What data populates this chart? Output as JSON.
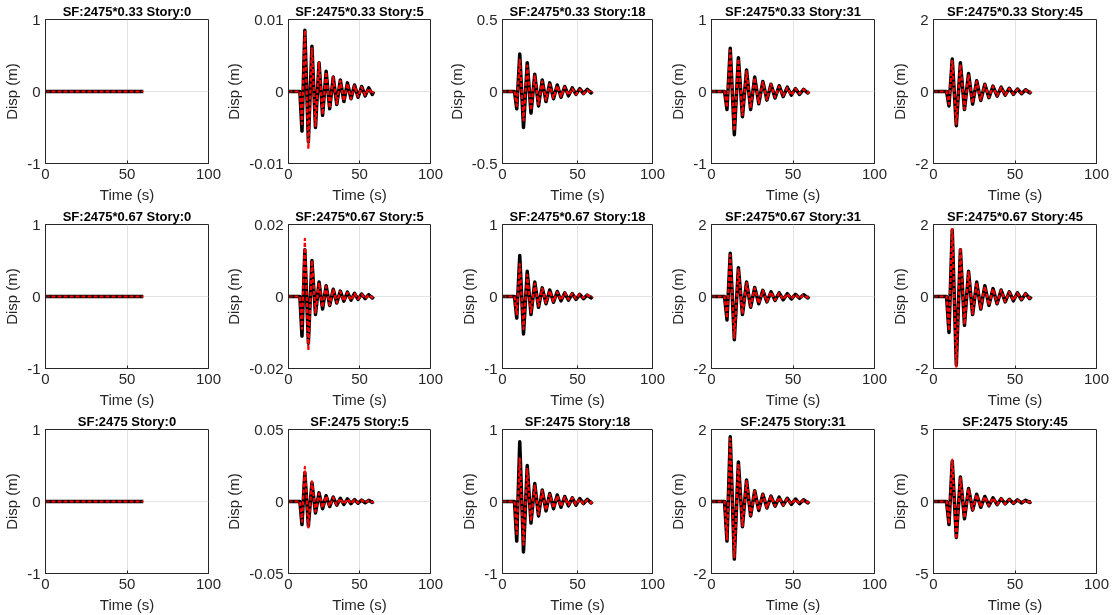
{
  "chart_data": [
    {
      "type": "line",
      "title": "SF:2475*0.33 Story:0",
      "xlabel": "Time (s)",
      "ylabel": "Disp (m)",
      "xlim": [
        0,
        100
      ],
      "xticks": [
        0,
        50,
        100
      ],
      "ylim": [
        -1,
        1
      ],
      "yticks": [
        -1,
        0,
        1
      ],
      "grid": true,
      "x": [
        0,
        8,
        9.5,
        11.5,
        14,
        16.5,
        19,
        21.5,
        24,
        26.5,
        29,
        31.5,
        34,
        36.5,
        39,
        41.5,
        44,
        46.5,
        49,
        51.5,
        54,
        56.5,
        59,
        60
      ],
      "series": [
        {
          "color": "#000000",
          "line_style": "solid",
          "values": [
            0,
            0,
            0,
            0,
            0,
            0,
            0,
            0,
            0,
            0,
            0,
            0,
            0,
            0,
            0,
            0,
            0,
            0,
            0,
            0,
            0,
            0,
            0,
            0
          ]
        },
        {
          "color": "#ff0000",
          "line_style": "dashed",
          "values": [
            0,
            0,
            0,
            0,
            0,
            0,
            0,
            0,
            0,
            0,
            0,
            0,
            0,
            0,
            0,
            0,
            0,
            0,
            0,
            0,
            0,
            0,
            0,
            0
          ]
        }
      ]
    },
    {
      "type": "line",
      "title": "SF:2475*0.33 Story:5",
      "xlabel": "Time (s)",
      "ylabel": "Disp (m)",
      "xlim": [
        0,
        100
      ],
      "xticks": [
        0,
        50,
        100
      ],
      "ylim": [
        -0.01,
        0.01
      ],
      "yticks": [
        -0.01,
        0,
        0.01
      ],
      "grid": true,
      "x": [
        0,
        8,
        9.5,
        11.5,
        14,
        16.5,
        19,
        21.5,
        24,
        26.5,
        29,
        31.5,
        34,
        36.5,
        39,
        41.5,
        44,
        46.5,
        49,
        51.5,
        54,
        56.5,
        59,
        60
      ],
      "series": [
        {
          "color": "#000000",
          "line_style": "solid",
          "values": [
            0,
            0,
            -0.0055,
            0.0085,
            -0.007,
            0.0063,
            -0.005,
            0.004,
            -0.0033,
            0.0028,
            -0.0024,
            0.002,
            -0.0018,
            0.0016,
            -0.0014,
            0.0012,
            -0.001,
            0.0009,
            -0.0008,
            0.0007,
            -0.0006,
            0.0005,
            -0.0004,
            0
          ]
        },
        {
          "color": "#ff0000",
          "line_style": "dashed",
          "values": [
            0,
            0,
            -0.0045,
            0.0085,
            -0.008,
            0.006,
            -0.0048,
            0.004,
            -0.0032,
            0.0027,
            -0.0023,
            0.002,
            -0.0017,
            0.0015,
            -0.0013,
            0.0011,
            -0.001,
            0.0008,
            -0.0007,
            0.0006,
            -0.0005,
            0.0004,
            -0.0003,
            0
          ]
        }
      ]
    },
    {
      "type": "line",
      "title": "SF:2475*0.33 Story:18",
      "xlabel": "Time (s)",
      "ylabel": "Disp (m)",
      "xlim": [
        0,
        100
      ],
      "xticks": [
        0,
        50,
        100
      ],
      "ylim": [
        -0.5,
        0.5
      ],
      "yticks": [
        -0.5,
        0,
        0.5
      ],
      "grid": true,
      "x": [
        0,
        8,
        9.5,
        11.5,
        14,
        16.5,
        19,
        21.5,
        24,
        26.5,
        29,
        31.5,
        34,
        36.5,
        39,
        41.5,
        44,
        46.5,
        49,
        51.5,
        54,
        56.5,
        59,
        60
      ],
      "series": [
        {
          "color": "#000000",
          "line_style": "solid",
          "values": [
            0,
            0,
            -0.12,
            0.26,
            -0.25,
            0.2,
            -0.15,
            0.12,
            -0.1,
            0.08,
            -0.07,
            0.06,
            -0.05,
            0.045,
            -0.04,
            0.035,
            -0.03,
            0.025,
            -0.02,
            0.02,
            -0.015,
            0.015,
            -0.01,
            0
          ]
        },
        {
          "color": "#ff0000",
          "line_style": "dashed",
          "values": [
            0,
            0,
            -0.1,
            0.22,
            -0.2,
            0.18,
            -0.13,
            0.11,
            -0.09,
            0.07,
            -0.06,
            0.05,
            -0.045,
            0.04,
            -0.035,
            0.03,
            -0.025,
            0.02,
            -0.02,
            0.015,
            -0.015,
            0.01,
            -0.01,
            0
          ]
        }
      ]
    },
    {
      "type": "line",
      "title": "SF:2475*0.33 Story:31",
      "xlabel": "Time (s)",
      "ylabel": "Disp (m)",
      "xlim": [
        0,
        100
      ],
      "xticks": [
        0,
        50,
        100
      ],
      "ylim": [
        -1,
        1
      ],
      "yticks": [
        -1,
        0,
        1
      ],
      "grid": true,
      "x": [
        0,
        8,
        9.5,
        11.5,
        14,
        16.5,
        19,
        21.5,
        24,
        26.5,
        29,
        31.5,
        34,
        36.5,
        39,
        41.5,
        44,
        46.5,
        49,
        51.5,
        54,
        56.5,
        59,
        60
      ],
      "series": [
        {
          "color": "#000000",
          "line_style": "solid",
          "values": [
            0,
            0,
            -0.25,
            0.6,
            -0.6,
            0.47,
            -0.35,
            0.3,
            -0.25,
            0.2,
            -0.17,
            0.14,
            -0.12,
            0.1,
            -0.09,
            0.08,
            -0.07,
            0.06,
            -0.05,
            0.04,
            -0.04,
            0.03,
            -0.02,
            0
          ]
        },
        {
          "color": "#ff0000",
          "line_style": "dashed",
          "values": [
            0,
            0,
            -0.22,
            0.57,
            -0.55,
            0.45,
            -0.33,
            0.28,
            -0.23,
            0.19,
            -0.16,
            0.13,
            -0.11,
            0.1,
            -0.08,
            0.07,
            -0.06,
            0.05,
            -0.05,
            0.04,
            -0.03,
            0.03,
            -0.02,
            0
          ]
        }
      ]
    },
    {
      "type": "line",
      "title": "SF:2475*0.33 Story:45",
      "xlabel": "Time (s)",
      "ylabel": "Disp (m)",
      "xlim": [
        0,
        100
      ],
      "xticks": [
        0,
        50,
        100
      ],
      "ylim": [
        -2,
        2
      ],
      "yticks": [
        -2,
        0,
        2
      ],
      "grid": true,
      "x": [
        0,
        8,
        9.5,
        11.5,
        14,
        16.5,
        19,
        21.5,
        24,
        26.5,
        29,
        31.5,
        34,
        36.5,
        39,
        41.5,
        44,
        46.5,
        49,
        51.5,
        54,
        56.5,
        59,
        60
      ],
      "series": [
        {
          "color": "#000000",
          "line_style": "solid",
          "values": [
            0,
            0,
            -0.4,
            0.9,
            -0.95,
            0.8,
            -0.5,
            0.5,
            -0.35,
            0.3,
            -0.25,
            0.2,
            -0.17,
            0.15,
            -0.13,
            0.12,
            -0.1,
            0.09,
            -0.08,
            0.07,
            -0.06,
            0.05,
            -0.04,
            0
          ]
        },
        {
          "color": "#ff0000",
          "line_style": "dashed",
          "values": [
            0,
            0,
            -0.35,
            0.85,
            -0.9,
            0.75,
            -0.48,
            0.45,
            -0.33,
            0.28,
            -0.23,
            0.19,
            -0.16,
            0.14,
            -0.12,
            0.11,
            -0.1,
            0.08,
            -0.07,
            0.06,
            -0.05,
            0.04,
            -0.03,
            0
          ]
        }
      ]
    },
    {
      "type": "line",
      "title": "SF:2475*0.67 Story:0",
      "xlabel": "Time (s)",
      "ylabel": "Disp (m)",
      "xlim": [
        0,
        100
      ],
      "xticks": [
        0,
        50,
        100
      ],
      "ylim": [
        -1,
        1
      ],
      "yticks": [
        -1,
        0,
        1
      ],
      "grid": true,
      "x": [
        0,
        8,
        9.5,
        11.5,
        14,
        16.5,
        19,
        21.5,
        24,
        26.5,
        29,
        31.5,
        34,
        36.5,
        39,
        41.5,
        44,
        46.5,
        49,
        51.5,
        54,
        56.5,
        59,
        60
      ],
      "series": [
        {
          "color": "#000000",
          "line_style": "solid",
          "values": [
            0,
            0,
            0,
            0,
            0,
            0,
            0,
            0,
            0,
            0,
            0,
            0,
            0,
            0,
            0,
            0,
            0,
            0,
            0,
            0,
            0,
            0,
            0,
            0
          ]
        },
        {
          "color": "#ff0000",
          "line_style": "dashed",
          "values": [
            0,
            0,
            0,
            0,
            0,
            0,
            0,
            0,
            0,
            0,
            0,
            0,
            0,
            0,
            0,
            0,
            0,
            0,
            0,
            0,
            0,
            0,
            0,
            0
          ]
        }
      ]
    },
    {
      "type": "line",
      "title": "SF:2475*0.67 Story:5",
      "xlabel": "Time (s)",
      "ylabel": "Disp (m)",
      "xlim": [
        0,
        100
      ],
      "xticks": [
        0,
        50,
        100
      ],
      "ylim": [
        -0.02,
        0.02
      ],
      "yticks": [
        -0.02,
        0,
        0.02
      ],
      "grid": true,
      "x": [
        0,
        8,
        9.5,
        11.5,
        14,
        16.5,
        19,
        21.5,
        24,
        26.5,
        29,
        31.5,
        34,
        36.5,
        39,
        41.5,
        44,
        46.5,
        49,
        51.5,
        54,
        56.5,
        59,
        60
      ],
      "series": [
        {
          "color": "#000000",
          "line_style": "solid",
          "values": [
            0,
            0,
            -0.011,
            0.013,
            -0.013,
            0.01,
            -0.005,
            0.004,
            -0.0035,
            0.003,
            -0.0025,
            0.002,
            -0.0018,
            0.0015,
            -0.0013,
            0.0012,
            -0.001,
            0.0009,
            -0.0008,
            0.0007,
            -0.0006,
            0.0005,
            -0.0004,
            0
          ]
        },
        {
          "color": "#ff0000",
          "line_style": "dashed",
          "values": [
            0,
            0,
            -0.009,
            0.016,
            -0.015,
            0.01,
            -0.0045,
            0.0038,
            -0.003,
            0.0028,
            -0.0023,
            0.0019,
            -0.0017,
            0.0014,
            -0.0012,
            0.0011,
            -0.001,
            0.0008,
            -0.0007,
            0.0006,
            -0.0005,
            0.0004,
            -0.0003,
            0
          ]
        }
      ]
    },
    {
      "type": "line",
      "title": "SF:2475*0.67 Story:18",
      "xlabel": "Time (s)",
      "ylabel": "Disp (m)",
      "xlim": [
        0,
        100
      ],
      "xticks": [
        0,
        50,
        100
      ],
      "ylim": [
        -1,
        1
      ],
      "yticks": [
        -1,
        0,
        1
      ],
      "grid": true,
      "x": [
        0,
        8,
        9.5,
        11.5,
        14,
        16.5,
        19,
        21.5,
        24,
        26.5,
        29,
        31.5,
        34,
        36.5,
        39,
        41.5,
        44,
        46.5,
        49,
        51.5,
        54,
        56.5,
        59,
        60
      ],
      "series": [
        {
          "color": "#000000",
          "line_style": "solid",
          "values": [
            0,
            0,
            -0.3,
            0.57,
            -0.52,
            0.35,
            -0.25,
            0.2,
            -0.15,
            0.12,
            -0.1,
            0.09,
            -0.08,
            0.07,
            -0.06,
            0.05,
            -0.05,
            0.04,
            -0.04,
            0.03,
            -0.03,
            0.02,
            -0.02,
            0
          ]
        },
        {
          "color": "#ff0000",
          "line_style": "dashed",
          "values": [
            0,
            0,
            -0.25,
            0.45,
            -0.45,
            0.3,
            -0.22,
            0.18,
            -0.13,
            0.11,
            -0.09,
            0.08,
            -0.07,
            0.06,
            -0.05,
            0.05,
            -0.04,
            0.04,
            -0.03,
            0.03,
            -0.02,
            0.02,
            -0.01,
            0
          ]
        }
      ]
    },
    {
      "type": "line",
      "title": "SF:2475*0.67 Story:31",
      "xlabel": "Time (s)",
      "ylabel": "Disp (m)",
      "xlim": [
        0,
        100
      ],
      "xticks": [
        0,
        50,
        100
      ],
      "ylim": [
        -2,
        2
      ],
      "yticks": [
        -2,
        0,
        2
      ],
      "grid": true,
      "x": [
        0,
        8,
        9.5,
        11.5,
        14,
        16.5,
        19,
        21.5,
        24,
        26.5,
        29,
        31.5,
        34,
        36.5,
        39,
        41.5,
        44,
        46.5,
        49,
        51.5,
        54,
        56.5,
        59,
        60
      ],
      "series": [
        {
          "color": "#000000",
          "line_style": "solid",
          "values": [
            0,
            0,
            -0.65,
            1.2,
            -1.2,
            0.8,
            -0.5,
            0.4,
            -0.3,
            0.25,
            -0.2,
            0.17,
            -0.15,
            0.13,
            -0.11,
            0.1,
            -0.09,
            0.08,
            -0.07,
            0.06,
            -0.05,
            0.05,
            -0.04,
            0
          ]
        },
        {
          "color": "#ff0000",
          "line_style": "dashed",
          "values": [
            0,
            0,
            -0.6,
            1.15,
            -1.15,
            0.75,
            -0.48,
            0.38,
            -0.28,
            0.23,
            -0.19,
            0.16,
            -0.14,
            0.12,
            -0.1,
            0.09,
            -0.08,
            0.07,
            -0.06,
            0.05,
            -0.05,
            0.04,
            -0.03,
            0
          ]
        }
      ]
    },
    {
      "type": "line",
      "title": "SF:2475*0.67 Story:45",
      "xlabel": "Time (s)",
      "ylabel": "Disp (m)",
      "xlim": [
        0,
        100
      ],
      "xticks": [
        0,
        50,
        100
      ],
      "ylim": [
        -2,
        2
      ],
      "yticks": [
        -2,
        0,
        2
      ],
      "grid": true,
      "x": [
        0,
        8,
        9.5,
        11.5,
        14,
        16.5,
        19,
        21.5,
        24,
        26.5,
        29,
        31.5,
        34,
        36.5,
        39,
        41.5,
        44,
        46.5,
        49,
        51.5,
        54,
        56.5,
        59,
        60
      ],
      "series": [
        {
          "color": "#000000",
          "line_style": "solid",
          "values": [
            0,
            0,
            -1.0,
            1.85,
            -1.9,
            1.3,
            -0.8,
            0.7,
            -0.5,
            0.4,
            -0.35,
            0.3,
            -0.25,
            0.22,
            -0.2,
            0.18,
            -0.15,
            0.13,
            -0.12,
            0.1,
            -0.09,
            0.08,
            -0.06,
            0
          ]
        },
        {
          "color": "#ff0000",
          "line_style": "dashed",
          "values": [
            0,
            0,
            -0.95,
            1.9,
            -1.95,
            1.35,
            -0.78,
            0.68,
            -0.48,
            0.38,
            -0.33,
            0.28,
            -0.24,
            0.21,
            -0.19,
            0.17,
            -0.14,
            0.12,
            -0.11,
            0.09,
            -0.08,
            0.07,
            -0.05,
            0
          ]
        }
      ]
    },
    {
      "type": "line",
      "title": "SF:2475 Story:0",
      "xlabel": "Time (s)",
      "ylabel": "Disp (m)",
      "xlim": [
        0,
        100
      ],
      "xticks": [
        0,
        50,
        100
      ],
      "ylim": [
        -1,
        1
      ],
      "yticks": [
        -1,
        0,
        1
      ],
      "grid": true,
      "x": [
        0,
        8,
        9.5,
        11.5,
        14,
        16.5,
        19,
        21.5,
        24,
        26.5,
        29,
        31.5,
        34,
        36.5,
        39,
        41.5,
        44,
        46.5,
        49,
        51.5,
        54,
        56.5,
        59,
        60
      ],
      "series": [
        {
          "color": "#000000",
          "line_style": "solid",
          "values": [
            0,
            0,
            0,
            0,
            0,
            0,
            0,
            0,
            0,
            0,
            0,
            0,
            0,
            0,
            0,
            0,
            0,
            0,
            0,
            0,
            0,
            0,
            0,
            0
          ]
        },
        {
          "color": "#ff0000",
          "line_style": "dashed",
          "values": [
            0,
            0,
            0,
            0,
            0,
            0,
            0,
            0,
            0,
            0,
            0,
            0,
            0,
            0,
            0,
            0,
            0,
            0,
            0,
            0,
            0,
            0,
            0,
            0
          ]
        }
      ]
    },
    {
      "type": "line",
      "title": "SF:2475 Story:5",
      "xlabel": "Time (s)",
      "ylabel": "Disp (m)",
      "xlim": [
        0,
        100
      ],
      "xticks": [
        0,
        50,
        100
      ],
      "ylim": [
        -0.05,
        0.05
      ],
      "yticks": [
        -0.05,
        0,
        0.05
      ],
      "grid": true,
      "x": [
        0,
        8,
        9.5,
        11.5,
        14,
        16.5,
        19,
        21.5,
        24,
        26.5,
        29,
        31.5,
        34,
        36.5,
        39,
        41.5,
        44,
        46.5,
        49,
        51.5,
        54,
        56.5,
        59,
        60
      ],
      "series": [
        {
          "color": "#000000",
          "line_style": "solid",
          "values": [
            0,
            0,
            -0.016,
            0.02,
            -0.017,
            0.013,
            -0.008,
            0.006,
            -0.005,
            0.004,
            -0.0035,
            0.003,
            -0.0025,
            0.0022,
            -0.002,
            0.0018,
            -0.0015,
            0.0013,
            -0.0012,
            0.001,
            -0.0009,
            0.0008,
            -0.0006,
            0
          ]
        },
        {
          "color": "#ff0000",
          "line_style": "dashed",
          "values": [
            0,
            0,
            -0.014,
            0.024,
            -0.018,
            0.014,
            -0.007,
            0.0055,
            -0.0045,
            0.0038,
            -0.0032,
            0.0028,
            -0.0023,
            0.002,
            -0.0018,
            0.0016,
            -0.0014,
            0.0012,
            -0.001,
            0.0009,
            -0.0008,
            0.0007,
            -0.0005,
            0
          ]
        }
      ]
    },
    {
      "type": "line",
      "title": "SF:2475 Story:18",
      "xlabel": "Time (s)",
      "ylabel": "Disp (m)",
      "xlim": [
        0,
        100
      ],
      "xticks": [
        0,
        50,
        100
      ],
      "ylim": [
        -1,
        1
      ],
      "yticks": [
        -1,
        0,
        1
      ],
      "grid": true,
      "x": [
        0,
        8,
        9.5,
        11.5,
        14,
        16.5,
        19,
        21.5,
        24,
        26.5,
        29,
        31.5,
        34,
        36.5,
        39,
        41.5,
        44,
        46.5,
        49,
        51.5,
        54,
        56.5,
        59,
        60
      ],
      "series": [
        {
          "color": "#000000",
          "line_style": "solid",
          "values": [
            0,
            0,
            -0.55,
            0.83,
            -0.7,
            0.5,
            -0.3,
            0.25,
            -0.2,
            0.16,
            -0.13,
            0.11,
            -0.1,
            0.09,
            -0.08,
            0.07,
            -0.06,
            0.05,
            -0.05,
            0.04,
            -0.03,
            0.03,
            -0.02,
            0
          ]
        },
        {
          "color": "#ff0000",
          "line_style": "dashed",
          "values": [
            0,
            0,
            -0.45,
            0.6,
            -0.6,
            0.45,
            -0.27,
            0.22,
            -0.18,
            0.15,
            -0.12,
            0.1,
            -0.09,
            0.08,
            -0.07,
            0.06,
            -0.05,
            0.05,
            -0.04,
            0.03,
            -0.03,
            0.02,
            -0.02,
            0
          ]
        }
      ]
    },
    {
      "type": "line",
      "title": "SF:2475 Story:31",
      "xlabel": "Time (s)",
      "ylabel": "Disp (m)",
      "xlim": [
        0,
        100
      ],
      "xticks": [
        0,
        50,
        100
      ],
      "ylim": [
        -2,
        2
      ],
      "yticks": [
        -2,
        0,
        2
      ],
      "grid": true,
      "x": [
        0,
        8,
        9.5,
        11.5,
        14,
        16.5,
        19,
        21.5,
        24,
        26.5,
        29,
        31.5,
        34,
        36.5,
        39,
        41.5,
        44,
        46.5,
        49,
        51.5,
        54,
        56.5,
        59,
        60
      ],
      "series": [
        {
          "color": "#000000",
          "line_style": "solid",
          "values": [
            0,
            0,
            -1.1,
            1.8,
            -1.6,
            1.1,
            -0.7,
            0.6,
            -0.4,
            0.3,
            -0.25,
            0.2,
            -0.18,
            0.15,
            -0.13,
            0.12,
            -0.1,
            0.09,
            -0.08,
            0.07,
            -0.06,
            0.05,
            -0.04,
            0
          ]
        },
        {
          "color": "#ff0000",
          "line_style": "dashed",
          "values": [
            0,
            0,
            -1.05,
            1.75,
            -1.55,
            1.05,
            -0.68,
            0.57,
            -0.38,
            0.29,
            -0.24,
            0.19,
            -0.17,
            0.14,
            -0.12,
            0.11,
            -0.1,
            0.08,
            -0.07,
            0.06,
            -0.05,
            0.04,
            -0.03,
            0
          ]
        }
      ]
    },
    {
      "type": "line",
      "title": "SF:2475 Story:45",
      "xlabel": "Time (s)",
      "ylabel": "Disp (m)",
      "xlim": [
        0,
        100
      ],
      "xticks": [
        0,
        50,
        100
      ],
      "ylim": [
        -5,
        5
      ],
      "yticks": [
        -5,
        0,
        5
      ],
      "grid": true,
      "x": [
        0,
        8,
        9.5,
        11.5,
        14,
        16.5,
        19,
        21.5,
        24,
        26.5,
        29,
        31.5,
        34,
        36.5,
        39,
        41.5,
        44,
        46.5,
        49,
        51.5,
        54,
        56.5,
        59,
        60
      ],
      "series": [
        {
          "color": "#000000",
          "line_style": "solid",
          "values": [
            0,
            0,
            -1.6,
            2.8,
            -2.5,
            1.7,
            -1.2,
            0.9,
            -0.6,
            0.5,
            -0.4,
            0.35,
            -0.3,
            0.25,
            -0.22,
            0.2,
            -0.17,
            0.15,
            -0.13,
            0.11,
            -0.1,
            0.08,
            -0.06,
            0
          ]
        },
        {
          "color": "#ff0000",
          "line_style": "dashed",
          "values": [
            0,
            0,
            -1.55,
            2.9,
            -2.6,
            1.65,
            -1.15,
            0.85,
            -0.58,
            0.48,
            -0.38,
            0.33,
            -0.28,
            0.24,
            -0.21,
            0.19,
            -0.16,
            0.14,
            -0.12,
            0.1,
            -0.09,
            0.07,
            -0.05,
            0
          ]
        }
      ]
    }
  ]
}
